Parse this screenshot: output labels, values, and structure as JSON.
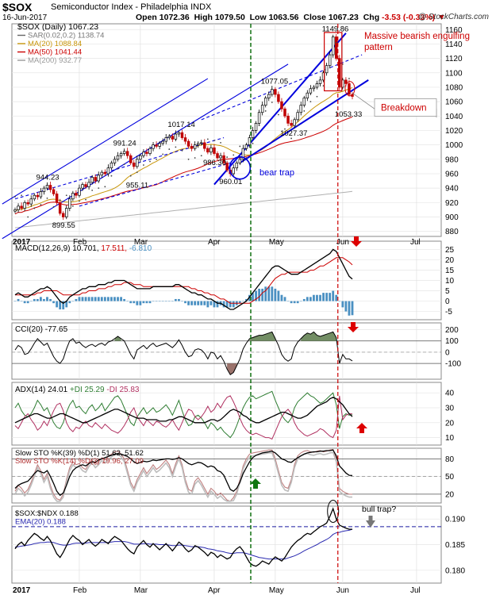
{
  "header": {
    "symbol": "$SOX",
    "name": "Semiconductor Index - Philadelphia  INDX",
    "date": "16-Jun-2017",
    "open_label": "Open",
    "open": "1072.36",
    "high_label": "High",
    "high": "1079.50",
    "low_label": "Low",
    "low": "1063.56",
    "close_label": "Close",
    "close": "1067.23",
    "chg_label": "Chg",
    "chg": "-3.53 (-0.33%)",
    "copyright": "@ StockCharts.com"
  },
  "colors": {
    "up": "#000000",
    "down": "#c00000",
    "ma20": "#c8960a",
    "ma50": "#cc0000",
    "ma200": "#b0b0b0",
    "trend": "#0000dd",
    "annotation": "#cc0000",
    "vline_green": "#006600",
    "vline_red": "#cc0000",
    "hist": "#4a90c2",
    "cci_fill": "#5a7a4a"
  },
  "x_labels": [
    "2017",
    "Feb",
    "Mar",
    "Apr",
    "May",
    "Jun",
    "Jul"
  ],
  "chart_data": [
    {
      "type": "candlestick",
      "panel": "price",
      "legend": [
        "$SOX (Daily) 1067.23",
        "SAR(0.02,0.2) 1138.74",
        "MA(20) 1088.84",
        "MA(50) 1041.44",
        "MA(200) 932.77"
      ],
      "y_ticks": [
        880,
        900,
        920,
        940,
        960,
        980,
        1000,
        1020,
        1040,
        1060,
        1080,
        1100,
        1120,
        1140,
        1160
      ],
      "ylim": [
        873,
        1168
      ],
      "closes": [
        910,
        915,
        912,
        920,
        918,
        925,
        930,
        928,
        935,
        940,
        944,
        938,
        932,
        920,
        905,
        900,
        912,
        925,
        933,
        930,
        940,
        945,
        942,
        948,
        955,
        950,
        958,
        962,
        960,
        968,
        975,
        980,
        985,
        988,
        991,
        985,
        975,
        970,
        980,
        985,
        990,
        988,
        995,
        1000,
        998,
        1002,
        1005,
        1010,
        1012,
        1008,
        1015,
        1017,
        1010,
        1005,
        998,
        995,
        1000,
        1002,
        1003,
        995,
        990,
        996,
        988,
        982,
        985,
        975,
        965,
        960,
        968,
        975,
        980,
        995,
        1000,
        1010,
        1020,
        1030,
        1045,
        1055,
        1065,
        1070,
        1077,
        1070,
        1060,
        1050,
        1040,
        1030,
        1027,
        1035,
        1045,
        1055,
        1065,
        1072,
        1078,
        1080,
        1085,
        1090,
        1100,
        1110,
        1125,
        1149.86,
        1120,
        1080,
        1090,
        1085,
        1070,
        1067.23
      ],
      "labels": [
        {
          "text": "944.23",
          "i": 10,
          "v": 944.23,
          "pos": "above"
        },
        {
          "text": "899.55",
          "i": 15,
          "v": 899.55,
          "pos": "below"
        },
        {
          "text": "991.24",
          "i": 34,
          "v": 991.24,
          "pos": "above"
        },
        {
          "text": "955.11",
          "i": 38,
          "v": 955.11,
          "pos": "below"
        },
        {
          "text": "1017.14",
          "i": 51,
          "v": 1017.14,
          "pos": "above"
        },
        {
          "text": "986.30",
          "i": 62,
          "v": 986.3,
          "pos": "below"
        },
        {
          "text": "960.01",
          "i": 67,
          "v": 960.01,
          "pos": "below"
        },
        {
          "text": "1077.05",
          "i": 80,
          "v": 1077.05,
          "pos": "above"
        },
        {
          "text": "1027.37",
          "i": 86,
          "v": 1027.37,
          "pos": "below"
        },
        {
          "text": "1149.86",
          "i": 99,
          "v": 1149.86,
          "pos": "above"
        },
        {
          "text": "1053.33",
          "i": 103,
          "v": 1053.33,
          "pos": "below"
        }
      ],
      "annotations": {
        "engulfing": "Massive bearish engulfing pattern",
        "breakdown": "Breakdown",
        "bear_trap": "bear trap"
      }
    },
    {
      "type": "line+bar",
      "panel": "macd",
      "legend_name": "MACD(12,26,9)",
      "legend_values": [
        "10.701",
        "17.511",
        "-6.810"
      ],
      "y_ticks": [
        25,
        20,
        15,
        10,
        5,
        0,
        -5
      ],
      "ylim": [
        -9,
        29
      ],
      "macd": [
        3,
        4,
        3,
        2,
        2,
        3,
        4,
        5,
        6,
        6,
        7,
        6,
        4,
        2,
        0,
        -1,
        0,
        2,
        3,
        4,
        5,
        6,
        6,
        7,
        7,
        7,
        8,
        8,
        8,
        9,
        9,
        10,
        10,
        10,
        10,
        9,
        8,
        7,
        6,
        6,
        6,
        6,
        6,
        7,
        7,
        7,
        7,
        7,
        7,
        7,
        8,
        8,
        7,
        6,
        5,
        4,
        4,
        3,
        3,
        2,
        1,
        1,
        0,
        -1,
        -1,
        -2,
        -3,
        -4,
        -4,
        -3,
        -2,
        -1,
        0,
        2,
        4,
        6,
        8,
        10,
        12,
        14,
        16,
        17,
        17,
        16,
        15,
        14,
        13,
        13,
        13,
        14,
        15,
        16,
        17,
        18,
        19,
        20,
        21,
        22,
        23,
        25,
        24,
        21,
        18,
        15,
        12,
        10.701
      ],
      "signal": [
        3,
        3,
        3,
        3,
        3,
        3,
        3,
        4,
        4,
        5,
        5,
        5,
        5,
        5,
        4,
        3,
        3,
        3,
        3,
        3,
        3,
        4,
        4,
        5,
        5,
        5,
        6,
        6,
        6,
        7,
        7,
        8,
        8,
        8,
        9,
        9,
        9,
        8,
        8,
        8,
        7,
        7,
        7,
        7,
        7,
        7,
        7,
        7,
        7,
        7,
        7,
        7,
        7,
        7,
        7,
        6,
        6,
        5,
        5,
        4,
        4,
        3,
        3,
        2,
        1,
        1,
        0,
        -1,
        -1,
        -1,
        -1,
        -1,
        -1,
        -1,
        0,
        1,
        2,
        4,
        5,
        7,
        9,
        11,
        12,
        13,
        13,
        14,
        14,
        14,
        14,
        14,
        14,
        14,
        15,
        15,
        16,
        17,
        17,
        18,
        19,
        20,
        21,
        21,
        21,
        20,
        19,
        17.511
      ]
    },
    {
      "type": "line",
      "panel": "cci",
      "legend_name": "CCI(20)",
      "legend_values": [
        "-77.65"
      ],
      "y_ticks": [
        200,
        100,
        0,
        -100
      ],
      "ylim": [
        -240,
        260
      ],
      "values": [
        20,
        60,
        40,
        -20,
        -10,
        30,
        80,
        120,
        90,
        60,
        80,
        20,
        -40,
        -80,
        -100,
        -60,
        30,
        100,
        120,
        80,
        90,
        60,
        40,
        60,
        70,
        50,
        70,
        80,
        60,
        90,
        100,
        120,
        140,
        120,
        100,
        40,
        -20,
        -60,
        20,
        40,
        60,
        30,
        60,
        80,
        50,
        60,
        70,
        80,
        60,
        40,
        70,
        110,
        60,
        0,
        -40,
        -30,
        20,
        30,
        20,
        -10,
        -60,
        0,
        -10,
        -60,
        -30,
        -80,
        -150,
        -200,
        -180,
        -120,
        -60,
        30,
        80,
        120,
        130,
        140,
        150,
        150,
        160,
        170,
        180,
        120,
        60,
        -20,
        -60,
        -80,
        -60,
        40,
        90,
        120,
        150,
        170,
        160,
        180,
        150,
        140,
        150,
        160,
        170,
        180,
        130,
        -100,
        -20,
        -60,
        -60,
        -77.65
      ]
    },
    {
      "type": "line",
      "panel": "adx",
      "legend_name": "ADX(14)",
      "legend_values": [
        "24.01",
        "+DI 25.29",
        "-DI 25.83"
      ],
      "y_ticks": [
        40,
        30,
        20,
        10
      ],
      "ylim": [
        5,
        47
      ],
      "adx": [
        20,
        21,
        22,
        23,
        24,
        25,
        26,
        26,
        25,
        24,
        23,
        23,
        24,
        25,
        26,
        26,
        25,
        24,
        23,
        22,
        21,
        20,
        20,
        21,
        22,
        23,
        24,
        25,
        26,
        27,
        28,
        29,
        29,
        28,
        27,
        26,
        25,
        24,
        23,
        23,
        23,
        22,
        22,
        22,
        22,
        21,
        21,
        21,
        22,
        22,
        23,
        24,
        24,
        23,
        22,
        21,
        20,
        20,
        20,
        20,
        21,
        22,
        22,
        21,
        22,
        24,
        26,
        28,
        29,
        28,
        27,
        25,
        24,
        22,
        21,
        20,
        20,
        21,
        22,
        23,
        24,
        25,
        26,
        27,
        27,
        26,
        25,
        24,
        23,
        23,
        24,
        25,
        27,
        29,
        31,
        32,
        33,
        34,
        36,
        37,
        36,
        34,
        32,
        29,
        26,
        24.01
      ],
      "pdi": [
        30,
        33,
        28,
        25,
        24,
        26,
        30,
        35,
        32,
        28,
        30,
        25,
        20,
        17,
        16,
        20,
        27,
        32,
        35,
        30,
        31,
        28,
        26,
        30,
        32,
        28,
        30,
        33,
        28,
        31,
        34,
        37,
        38,
        35,
        30,
        25,
        20,
        18,
        24,
        27,
        30,
        26,
        28,
        30,
        27,
        28,
        30,
        32,
        29,
        25,
        30,
        35,
        28,
        22,
        18,
        19,
        24,
        25,
        23,
        20,
        16,
        20,
        18,
        15,
        17,
        14,
        12,
        10,
        13,
        18,
        24,
        30,
        34,
        37,
        38,
        36,
        37,
        38,
        39,
        40,
        41,
        35,
        30,
        25,
        22,
        20,
        23,
        30,
        34,
        36,
        38,
        40,
        38,
        37,
        35,
        33,
        34,
        36,
        38,
        40,
        32,
        16,
        24,
        26,
        25,
        25.29
      ],
      "mdi": [
        18,
        16,
        20,
        24,
        26,
        22,
        19,
        15,
        17,
        21,
        18,
        23,
        28,
        32,
        33,
        28,
        20,
        16,
        14,
        17,
        16,
        19,
        21,
        18,
        17,
        20,
        18,
        16,
        19,
        17,
        15,
        14,
        13,
        15,
        18,
        22,
        27,
        30,
        24,
        21,
        18,
        22,
        20,
        18,
        21,
        20,
        18,
        17,
        19,
        22,
        18,
        15,
        20,
        25,
        29,
        28,
        24,
        22,
        24,
        27,
        31,
        27,
        29,
        33,
        30,
        34,
        37,
        38,
        34,
        29,
        23,
        18,
        15,
        13,
        12,
        13,
        12,
        11,
        10,
        10,
        9,
        14,
        19,
        24,
        27,
        29,
        26,
        20,
        16,
        14,
        12,
        11,
        12,
        13,
        14,
        16,
        15,
        13,
        11,
        10,
        15,
        38,
        22,
        25,
        26,
        25.83
      ]
    },
    {
      "type": "line",
      "panel": "stoch",
      "legend": [
        "Slow STO %K(39) %D(1) 51.62, 51.62",
        "Slow STO %K(14) %D(3) 19.96, 27.09"
      ],
      "y_ticks": [
        80,
        50,
        20
      ],
      "ylim": [
        5,
        98
      ],
      "slow39": [
        30,
        35,
        38,
        40,
        42,
        48,
        55,
        60,
        58,
        56,
        60,
        50,
        38,
        25,
        18,
        22,
        35,
        50,
        60,
        65,
        68,
        70,
        68,
        72,
        75,
        74,
        78,
        80,
        82,
        84,
        86,
        88,
        89,
        88,
        86,
        84,
        80,
        75,
        72,
        74,
        76,
        75,
        76,
        78,
        77,
        78,
        79,
        80,
        80,
        79,
        80,
        82,
        80,
        76,
        72,
        70,
        72,
        74,
        73,
        70,
        66,
        68,
        66,
        60,
        58,
        52,
        40,
        28,
        25,
        30,
        40,
        55,
        65,
        75,
        82,
        86,
        88,
        90,
        91,
        92,
        93,
        90,
        85,
        80,
        78,
        75,
        74,
        78,
        82,
        85,
        88,
        90,
        91,
        92,
        92,
        93,
        93,
        94,
        94,
        95,
        85,
        68,
        62,
        56,
        52,
        51.62
      ],
      "fast14": [
        25,
        35,
        30,
        22,
        28,
        40,
        55,
        70,
        60,
        45,
        55,
        35,
        20,
        12,
        10,
        20,
        45,
        65,
        75,
        70,
        72,
        65,
        62,
        72,
        78,
        70,
        75,
        82,
        78,
        84,
        88,
        92,
        93,
        88,
        80,
        60,
        40,
        30,
        45,
        55,
        65,
        55,
        62,
        70,
        62,
        66,
        72,
        78,
        70,
        55,
        72,
        85,
        70,
        45,
        28,
        25,
        42,
        48,
        40,
        30,
        20,
        30,
        25,
        18,
        22,
        16,
        10,
        8,
        14,
        25,
        45,
        68,
        80,
        88,
        90,
        91,
        92,
        93,
        94,
        95,
        95,
        80,
        60,
        40,
        32,
        30,
        45,
        70,
        85,
        90,
        93,
        94,
        92,
        91,
        93,
        94,
        92,
        93,
        95,
        96,
        80,
        30,
        25,
        22,
        20,
        19.96
      ]
    },
    {
      "type": "line",
      "panel": "ratio",
      "legend": [
        "$SOX:$NDX 0.188",
        "EMA(20) 0.188"
      ],
      "y_ticks": [
        0.19,
        0.185,
        0.18
      ],
      "ylim": [
        0.1775,
        0.1925
      ],
      "ratio": [
        0.1842,
        0.185,
        0.1855,
        0.1848,
        0.1858,
        0.1865,
        0.1872,
        0.1868,
        0.1862,
        0.1858,
        0.1866,
        0.1858,
        0.1845,
        0.1832,
        0.1825,
        0.1835,
        0.1848,
        0.186,
        0.1868,
        0.1862,
        0.1858,
        0.185,
        0.1855,
        0.186,
        0.1852,
        0.1847,
        0.1852,
        0.186,
        0.1856,
        0.1852,
        0.186,
        0.1866,
        0.1862,
        0.1858,
        0.185,
        0.1842,
        0.1836,
        0.1832,
        0.1845,
        0.1852,
        0.1858,
        0.185,
        0.1845,
        0.1852,
        0.1846,
        0.184,
        0.1846,
        0.1852,
        0.1845,
        0.1838,
        0.1846,
        0.1855,
        0.185,
        0.1842,
        0.1836,
        0.184,
        0.1848,
        0.1845,
        0.184,
        0.1835,
        0.1828,
        0.1835,
        0.1832,
        0.1825,
        0.183,
        0.1826,
        0.1822,
        0.1825,
        0.1835,
        0.1842,
        0.1846,
        0.1838,
        0.1826,
        0.1815,
        0.181,
        0.1808,
        0.1812,
        0.1818,
        0.1815,
        0.1812,
        0.182,
        0.1826,
        0.1822,
        0.1818,
        0.1825,
        0.1835,
        0.1845,
        0.1852,
        0.1858,
        0.1862,
        0.1868,
        0.1872,
        0.187,
        0.1875,
        0.188,
        0.1885,
        0.1888,
        0.1892,
        0.1905,
        0.192,
        0.19,
        0.1888,
        0.1885,
        0.1882,
        0.188,
        0.188
      ],
      "ema": [
        0.1845,
        0.1846,
        0.1847,
        0.1848,
        0.1849,
        0.185,
        0.1852,
        0.1853,
        0.1854,
        0.1854,
        0.1855,
        0.1855,
        0.1854,
        0.1852,
        0.185,
        0.1849,
        0.1849,
        0.185,
        0.1852,
        0.1853,
        0.1853,
        0.1853,
        0.1853,
        0.1854,
        0.1854,
        0.1854,
        0.1854,
        0.1854,
        0.1854,
        0.1854,
        0.1855,
        0.1856,
        0.1856,
        0.1856,
        0.1856,
        0.1855,
        0.1853,
        0.1851,
        0.1851,
        0.1851,
        0.1852,
        0.1852,
        0.1851,
        0.1851,
        0.1851,
        0.185,
        0.185,
        0.185,
        0.1849,
        0.1848,
        0.1848,
        0.1849,
        0.1849,
        0.1848,
        0.1847,
        0.1846,
        0.1846,
        0.1846,
        0.1845,
        0.1844,
        0.1842,
        0.1841,
        0.184,
        0.1838,
        0.1837,
        0.1836,
        0.1834,
        0.1833,
        0.1833,
        0.1834,
        0.1834,
        0.1834,
        0.1833,
        0.1831,
        0.1829,
        0.1827,
        0.1825,
        0.1824,
        0.1823,
        0.1822,
        0.1822,
        0.1822,
        0.1822,
        0.1822,
        0.1822,
        0.1824,
        0.1826,
        0.1828,
        0.1831,
        0.1834,
        0.1838,
        0.1841,
        0.1844,
        0.1847,
        0.185,
        0.1854,
        0.1857,
        0.186,
        0.1864,
        0.187,
        0.1873,
        0.1874,
        0.1876,
        0.1877,
        0.1878,
        0.188
      ],
      "annotation": "bull trap?"
    }
  ]
}
